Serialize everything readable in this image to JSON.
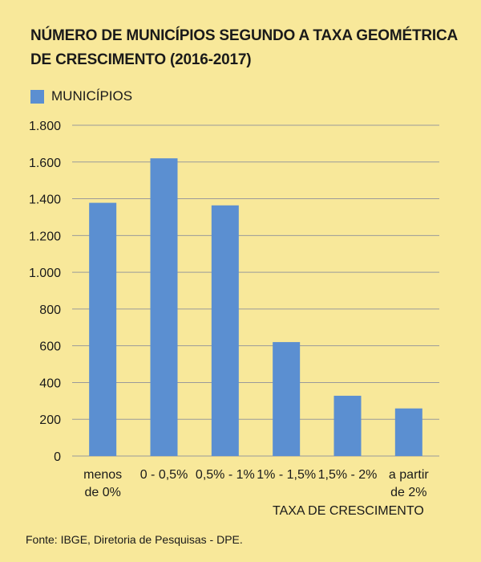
{
  "title_lines": [
    "NÚMERO DE MUNICÍPIOS SEGUNDO A TAXA GEOMÉTRICA",
    "DE CRESCIMENTO (2016-2017)"
  ],
  "source": "Fonte: IBGE, Diretoria de Pesquisas - DPE.",
  "colors": {
    "background": "#f8e89a",
    "bar": "#5b8fd1",
    "grid": "#9a9a9a"
  },
  "chart_data": {
    "type": "bar",
    "title": "NÚMERO DE MUNICÍPIOS SEGUNDO A TAXA GEOMÉTRICA DE CRESCIMENTO (2016-2017)",
    "categories": [
      "menos de 0%",
      "0 - 0,5%",
      "0,5% - 1%",
      "1% - 1,5%",
      "1,5% - 2%",
      "a partir de 2%"
    ],
    "category_lines": [
      [
        "menos",
        "de 0%"
      ],
      [
        "0 - 0,5%"
      ],
      [
        "0,5% - 1%"
      ],
      [
        "1% - 1,5%"
      ],
      [
        "1,5% - 2%"
      ],
      [
        "a partir",
        "de 2%"
      ]
    ],
    "series": [
      {
        "name": "MUNICÍPIOS",
        "values": [
          1378,
          1620,
          1364,
          620,
          328,
          259
        ]
      }
    ],
    "xlabel": "TAXA DE CRESCIMENTO",
    "ylabel": "",
    "ylim": [
      0,
      1800
    ],
    "yticks": [
      0,
      200,
      400,
      600,
      800,
      1000,
      1200,
      1400,
      1600,
      1800
    ],
    "ytick_labels": [
      "0",
      "200",
      "400",
      "600",
      "800",
      "1.000",
      "1.200",
      "1.400",
      "1.600",
      "1.800"
    ],
    "grid": true,
    "legend_position": "top-left"
  }
}
